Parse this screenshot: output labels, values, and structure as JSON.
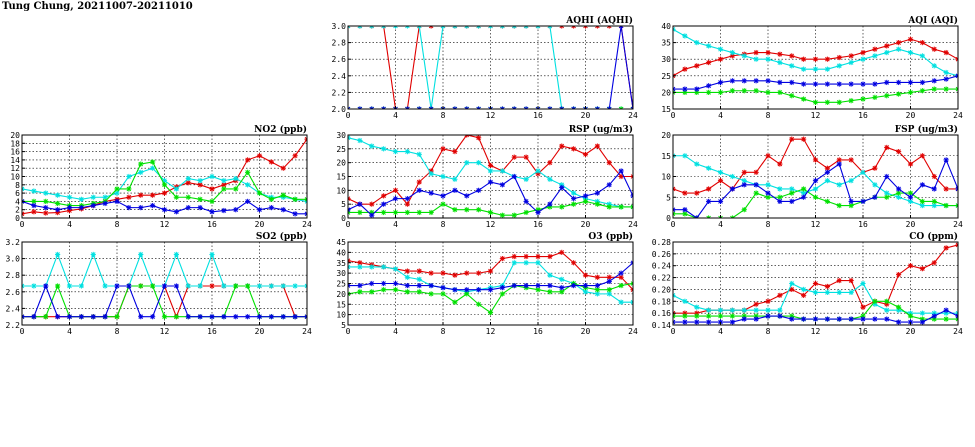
{
  "page": {
    "title": "Tung Chung, 20211007-20211010"
  },
  "colors": {
    "red": "#e00000",
    "cyan": "#00e0e0",
    "green": "#00e000",
    "blue": "#0000e0"
  },
  "chart_data": [
    {
      "id": "aqhi",
      "type": "line",
      "title": "AQHI (AQHI)",
      "xlim": [
        0,
        24
      ],
      "ylim": [
        2.0,
        3.0
      ],
      "xticks": [
        0,
        4,
        8,
        12,
        16,
        20,
        24
      ],
      "yticks": [
        2.0,
        2.2,
        2.4,
        2.6,
        2.8,
        3.0
      ],
      "ytick_decimals": 1,
      "grid": true,
      "series": [
        {
          "color": "red",
          "values": [
            3,
            3,
            3,
            3,
            2,
            2,
            3,
            3,
            3,
            3,
            3,
            3,
            3,
            3,
            3,
            3,
            3,
            3,
            3,
            3,
            3,
            3,
            3,
            3,
            2
          ]
        },
        {
          "color": "cyan",
          "values": [
            3,
            3,
            3,
            3,
            3,
            3,
            3,
            2,
            3,
            3,
            3,
            3,
            3,
            3,
            3,
            3,
            3,
            3,
            2,
            2,
            2,
            2,
            2,
            2,
            2
          ]
        },
        {
          "color": "green",
          "values": [
            2,
            2,
            2,
            2,
            2,
            2,
            2,
            2,
            2,
            2,
            2,
            2,
            2,
            2,
            2,
            2,
            2,
            2,
            2,
            2,
            2,
            2,
            2,
            2,
            2
          ]
        },
        {
          "color": "blue",
          "values": [
            2,
            2,
            2,
            2,
            2,
            2,
            2,
            2,
            2,
            2,
            2,
            2,
            2,
            2,
            2,
            2,
            2,
            2,
            2,
            2,
            2,
            2,
            2,
            3,
            2
          ]
        }
      ]
    },
    {
      "id": "aqi",
      "type": "line",
      "title": "AQI (AQI)",
      "xlim": [
        0,
        24
      ],
      "ylim": [
        15,
        40
      ],
      "xticks": [
        0,
        4,
        8,
        12,
        16,
        20,
        24
      ],
      "yticks": [
        15,
        20,
        25,
        30,
        35,
        40
      ],
      "ytick_decimals": 0,
      "grid": true,
      "series": [
        {
          "color": "red",
          "values": [
            25,
            27,
            28,
            29,
            30,
            31,
            31.5,
            32,
            32,
            31.5,
            31,
            30,
            30,
            30,
            30.5,
            31,
            32,
            33,
            34,
            35,
            36,
            35,
            33,
            32,
            30
          ]
        },
        {
          "color": "cyan",
          "values": [
            39,
            37,
            35,
            34,
            33,
            32,
            31,
            30,
            30,
            29,
            28,
            27,
            27,
            27,
            28,
            29,
            30,
            31,
            32,
            33,
            32,
            31,
            28,
            26,
            25
          ]
        },
        {
          "color": "green",
          "values": [
            20,
            20,
            20,
            20,
            20,
            20.5,
            20.5,
            20.5,
            20,
            20,
            19,
            18,
            17,
            17,
            17,
            17.5,
            18,
            18.5,
            19,
            19.5,
            20,
            20.5,
            21,
            21,
            21
          ]
        },
        {
          "color": "blue",
          "values": [
            21,
            21,
            21,
            22,
            23,
            23.5,
            23.5,
            23.5,
            23.5,
            23,
            23,
            22.5,
            22.5,
            22.5,
            22.5,
            22.5,
            22.5,
            22.5,
            23,
            23,
            23,
            23,
            23.5,
            24,
            25
          ]
        }
      ]
    },
    {
      "id": "no2",
      "type": "line",
      "title": "NO2 (ppb)",
      "xlim": [
        0,
        24
      ],
      "ylim": [
        0,
        20
      ],
      "xticks": [
        0,
        4,
        8,
        12,
        16,
        20,
        24
      ],
      "yticks": [
        0,
        2,
        4,
        6,
        8,
        10,
        12,
        14,
        16,
        18,
        20
      ],
      "ytick_decimals": 0,
      "grid": true,
      "series": [
        {
          "color": "red",
          "values": [
            1,
            1.5,
            1.2,
            1.3,
            1.8,
            2.2,
            3,
            4,
            4.5,
            5,
            5.5,
            5.5,
            6,
            7.5,
            8.5,
            8,
            7,
            8,
            9,
            14,
            15,
            13.5,
            12,
            15,
            19
          ]
        },
        {
          "color": "cyan",
          "values": [
            7,
            6.5,
            6,
            5.5,
            5,
            4.5,
            5,
            5,
            6,
            10,
            11,
            12,
            9,
            7,
            9.5,
            9,
            10,
            9,
            9.5,
            8,
            6,
            5,
            5,
            4.5,
            4
          ]
        },
        {
          "color": "green",
          "values": [
            4,
            4,
            4,
            3.5,
            3,
            3,
            3.5,
            4,
            7,
            7,
            13,
            13.5,
            8,
            5,
            5,
            4.5,
            4,
            7,
            7,
            11,
            6,
            4.5,
            5.5,
            4.5,
            4.5
          ]
        },
        {
          "color": "blue",
          "values": [
            4,
            3,
            2.5,
            2,
            2.5,
            2.5,
            3,
            3.5,
            4,
            2.5,
            2.5,
            3,
            2,
            1.5,
            2.5,
            2.5,
            1.5,
            1.8,
            2,
            4,
            2,
            2.5,
            2,
            1,
            1
          ]
        }
      ]
    },
    {
      "id": "rsp",
      "type": "line",
      "title": "RSP (ug/m3)",
      "xlim": [
        0,
        24
      ],
      "ylim": [
        0,
        30
      ],
      "xticks": [
        0,
        4,
        8,
        12,
        16,
        20,
        24
      ],
      "yticks": [
        0,
        5,
        10,
        15,
        20,
        25,
        30
      ],
      "ytick_decimals": 0,
      "grid": true,
      "series": [
        {
          "color": "red",
          "values": [
            7,
            5,
            5,
            8,
            10,
            5,
            13,
            17,
            25,
            24,
            30,
            29,
            19,
            17,
            22,
            22,
            16,
            20,
            26,
            25,
            23,
            26,
            20,
            15,
            15
          ]
        },
        {
          "color": "cyan",
          "values": [
            29,
            28,
            26,
            25,
            24,
            24,
            23,
            16,
            15,
            14,
            20,
            20,
            17,
            17,
            15,
            14,
            17,
            14,
            12,
            9,
            7,
            6,
            5,
            4,
            4
          ]
        },
        {
          "color": "green",
          "values": [
            2,
            2,
            2,
            2,
            2,
            2,
            2,
            2,
            5,
            3,
            3,
            3,
            2,
            1,
            1,
            2,
            3,
            4,
            4,
            5,
            6,
            5,
            4,
            4,
            4
          ]
        },
        {
          "color": "blue",
          "values": [
            3,
            5,
            1,
            5,
            7,
            7,
            10,
            9,
            8,
            10,
            8,
            10,
            13,
            12,
            15,
            6,
            2,
            5,
            11,
            7,
            8,
            9,
            12,
            17,
            8
          ]
        }
      ]
    },
    {
      "id": "fsp",
      "type": "line",
      "title": "FSP (ug/m3)",
      "xlim": [
        0,
        24
      ],
      "ylim": [
        0,
        20
      ],
      "xticks": [
        0,
        4,
        8,
        12,
        16,
        20,
        24
      ],
      "yticks": [
        0,
        5,
        10,
        15,
        20
      ],
      "ytick_decimals": 0,
      "grid": true,
      "series": [
        {
          "color": "red",
          "values": [
            7,
            6,
            6,
            7,
            9,
            7,
            11,
            11,
            15,
            13,
            19,
            19,
            14,
            12,
            14,
            14,
            11,
            12,
            17,
            16,
            13,
            15,
            10,
            7,
            7
          ]
        },
        {
          "color": "cyan",
          "values": [
            15,
            15,
            13,
            12,
            11,
            10,
            9,
            8,
            8,
            7,
            7,
            6,
            7,
            9,
            8,
            9,
            11,
            8,
            6,
            5,
            4,
            3,
            3,
            3,
            3
          ]
        },
        {
          "color": "green",
          "values": [
            1,
            1,
            0,
            0,
            0,
            0,
            2,
            6,
            5,
            5,
            6,
            7,
            5,
            4,
            3,
            3,
            4,
            5,
            5,
            6,
            6,
            4,
            4,
            3,
            3
          ]
        },
        {
          "color": "blue",
          "values": [
            2,
            2,
            0,
            4,
            4,
            7,
            8,
            8,
            6,
            4,
            4,
            5,
            9,
            11,
            13,
            4,
            4,
            5,
            10,
            7,
            5,
            8,
            7,
            14,
            7
          ]
        }
      ]
    },
    {
      "id": "so2",
      "type": "line",
      "title": "SO2 (ppb)",
      "xlim": [
        0,
        24
      ],
      "ylim": [
        2.2,
        3.2
      ],
      "xticks": [
        0,
        4,
        8,
        12,
        16,
        20,
        24
      ],
      "yticks": [
        2.2,
        2.4,
        2.6,
        2.8,
        3.0,
        3.2
      ],
      "ytick_decimals": 1,
      "grid": true,
      "series": [
        {
          "color": "red",
          "values": [
            2.3,
            2.3,
            2.3,
            2.3,
            2.3,
            2.3,
            2.3,
            2.3,
            2.3,
            2.67,
            2.67,
            2.67,
            2.67,
            2.3,
            2.67,
            2.67,
            2.67,
            2.67,
            2.67,
            2.67,
            2.67,
            2.67,
            2.67,
            2.3,
            2.3
          ]
        },
        {
          "color": "cyan",
          "values": [
            2.67,
            2.67,
            2.67,
            3.05,
            2.67,
            2.67,
            3.05,
            2.67,
            2.67,
            2.67,
            3.05,
            2.67,
            2.67,
            3.05,
            2.67,
            2.67,
            3.05,
            2.67,
            2.67,
            2.67,
            2.67,
            2.67,
            2.67,
            2.67,
            2.67
          ]
        },
        {
          "color": "green",
          "values": [
            2.3,
            2.3,
            2.3,
            2.67,
            2.3,
            2.3,
            2.3,
            2.3,
            2.3,
            2.67,
            2.67,
            2.67,
            2.3,
            2.3,
            2.3,
            2.3,
            2.3,
            2.3,
            2.67,
            2.67,
            2.3,
            2.3,
            2.3,
            2.3,
            2.3
          ]
        },
        {
          "color": "blue",
          "values": [
            2.3,
            2.3,
            2.67,
            2.3,
            2.3,
            2.3,
            2.3,
            2.3,
            2.67,
            2.67,
            2.3,
            2.3,
            2.67,
            2.67,
            2.3,
            2.3,
            2.3,
            2.3,
            2.3,
            2.3,
            2.3,
            2.3,
            2.3,
            2.3,
            2.3
          ]
        }
      ]
    },
    {
      "id": "o3",
      "type": "line",
      "title": "O3 (ppb)",
      "xlim": [
        0,
        24
      ],
      "ylim": [
        5,
        45
      ],
      "xticks": [
        0,
        4,
        8,
        12,
        16,
        20,
        24
      ],
      "yticks": [
        5,
        10,
        15,
        20,
        25,
        30,
        35,
        40,
        45
      ],
      "ytick_decimals": 0,
      "grid": true,
      "series": [
        {
          "color": "red",
          "values": [
            36,
            35,
            34,
            33,
            32,
            31,
            31,
            30,
            30,
            29,
            30,
            30,
            31,
            37,
            38,
            38,
            38,
            38,
            40,
            35,
            29,
            28,
            28,
            28,
            22
          ]
        },
        {
          "color": "cyan",
          "values": [
            33,
            33,
            33,
            33,
            32,
            28,
            27,
            24,
            23,
            22,
            21,
            22,
            23,
            24,
            35,
            35,
            35,
            29,
            27,
            25,
            21,
            20,
            20,
            16,
            16
          ]
        },
        {
          "color": "green",
          "values": [
            20,
            21,
            21,
            22,
            22,
            21,
            21,
            20,
            20,
            16,
            20,
            15,
            11,
            20,
            24,
            23,
            22,
            21,
            21,
            25,
            23,
            22,
            22,
            24,
            25
          ]
        },
        {
          "color": "blue",
          "values": [
            24,
            24,
            25,
            25,
            25,
            24,
            24,
            24,
            23,
            22,
            22,
            22,
            22,
            23,
            24,
            24,
            24,
            24,
            23,
            24,
            24,
            24,
            26,
            30,
            35
          ]
        }
      ]
    },
    {
      "id": "co",
      "type": "line",
      "title": "CO (ppm)",
      "xlim": [
        0,
        24
      ],
      "ylim": [
        0.14,
        0.28
      ],
      "xticks": [
        0,
        4,
        8,
        12,
        16,
        20,
        24
      ],
      "yticks": [
        0.14,
        0.16,
        0.18,
        0.2,
        0.22,
        0.24,
        0.26,
        0.28
      ],
      "ytick_decimals": 2,
      "grid": true,
      "series": [
        {
          "color": "red",
          "values": [
            0.16,
            0.16,
            0.16,
            0.165,
            0.165,
            0.165,
            0.165,
            0.175,
            0.18,
            0.19,
            0.2,
            0.19,
            0.21,
            0.205,
            0.215,
            0.215,
            0.17,
            0.18,
            0.175,
            0.225,
            0.24,
            0.235,
            0.245,
            0.27,
            0.275
          ]
        },
        {
          "color": "cyan",
          "values": [
            0.19,
            0.18,
            0.17,
            0.165,
            0.165,
            0.165,
            0.165,
            0.165,
            0.165,
            0.165,
            0.21,
            0.2,
            0.195,
            0.195,
            0.195,
            0.195,
            0.21,
            0.175,
            0.165,
            0.165,
            0.16,
            0.16,
            0.16,
            0.16,
            0.16
          ]
        },
        {
          "color": "green",
          "values": [
            0.155,
            0.155,
            0.155,
            0.155,
            0.155,
            0.155,
            0.155,
            0.155,
            0.155,
            0.155,
            0.155,
            0.15,
            0.15,
            0.15,
            0.15,
            0.15,
            0.155,
            0.18,
            0.18,
            0.17,
            0.155,
            0.15,
            0.15,
            0.15,
            0.15
          ]
        },
        {
          "color": "blue",
          "values": [
            0.145,
            0.145,
            0.145,
            0.145,
            0.145,
            0.145,
            0.15,
            0.15,
            0.155,
            0.155,
            0.15,
            0.15,
            0.15,
            0.15,
            0.15,
            0.15,
            0.15,
            0.15,
            0.15,
            0.145,
            0.145,
            0.145,
            0.155,
            0.165,
            0.155
          ]
        }
      ]
    }
  ]
}
